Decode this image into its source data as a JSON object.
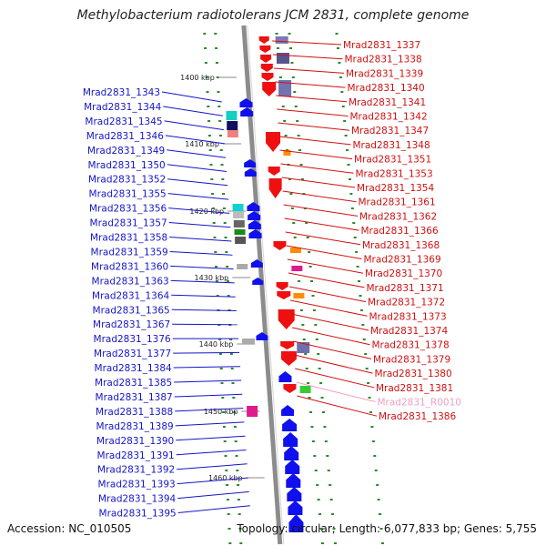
{
  "title": "Methylobacterium radiotolerans JCM 2831, complete genome",
  "footer": {
    "accession": "Accession: NC_010505",
    "topology": "Topology: circular; Length: 6,077,833 bp; Genes: 5,755"
  },
  "colors": {
    "left_label": "#1515c8",
    "right_label": "#d01010",
    "rna_label": "#f0a0c0",
    "backbone": "#8c8c8c",
    "tick": "#2a8a2a"
  },
  "kbp_markers": [
    "1400 kbp",
    "1410 kbp",
    "1420 kbp",
    "1430 kbp",
    "1440 kbp",
    "1450 kbp",
    "1460 kbp"
  ],
  "left_labels": [
    "Mrad2831_1343",
    "Mrad2831_1344",
    "Mrad2831_1345",
    "Mrad2831_1346",
    "Mrad2831_1349",
    "Mrad2831_1350",
    "Mrad2831_1352",
    "Mrad2831_1355",
    "Mrad2831_1356",
    "Mrad2831_1357",
    "Mrad2831_1358",
    "Mrad2831_1359",
    "Mrad2831_1360",
    "Mrad2831_1363",
    "Mrad2831_1364",
    "Mrad2831_1365",
    "Mrad2831_1367",
    "Mrad2831_1376",
    "Mrad2831_1377",
    "Mrad2831_1384",
    "Mrad2831_1385",
    "Mrad2831_1387",
    "Mrad2831_1388",
    "Mrad2831_1389",
    "Mrad2831_1390",
    "Mrad2831_1391",
    "Mrad2831_1392",
    "Mrad2831_1393",
    "Mrad2831_1394",
    "Mrad2831_1395"
  ],
  "right_labels": [
    "Mrad2831_1337",
    "Mrad2831_1338",
    "Mrad2831_1339",
    "Mrad2831_1340",
    "Mrad2831_1341",
    "Mrad2831_1342",
    "Mrad2831_1347",
    "Mrad2831_1348",
    "Mrad2831_1351",
    "Mrad2831_1353",
    "Mrad2831_1354",
    "Mrad2831_1361",
    "Mrad2831_1362",
    "Mrad2831_1366",
    "Mrad2831_1368",
    "Mrad2831_1369",
    "Mrad2831_1370",
    "Mrad2831_1371",
    "Mrad2831_1372",
    "Mrad2831_1373",
    "Mrad2831_1374",
    "Mrad2831_1378",
    "Mrad2831_1379",
    "Mrad2831_1380",
    "Mrad2831_1381",
    "Mrad2831_R0010",
    "Mrad2831_1386"
  ],
  "rna_right_label": "Mrad2831_R0010"
}
